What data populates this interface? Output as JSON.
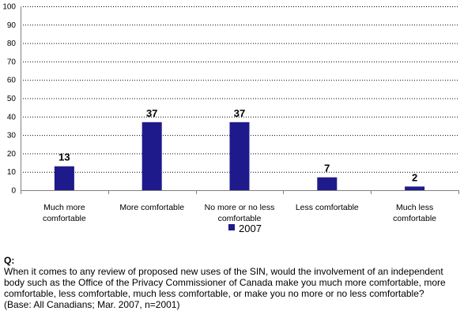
{
  "chart_data": {
    "type": "bar",
    "categories": [
      [
        "Much more",
        "comfortable"
      ],
      [
        "More comfortable"
      ],
      [
        "No more or no less",
        "comfortable"
      ],
      [
        "Less comfortable"
      ],
      [
        "Much less",
        "comfortable"
      ]
    ],
    "series": [
      {
        "name": "2007",
        "values": [
          13,
          37,
          37,
          7,
          2
        ],
        "color": "#1f1a8c"
      }
    ],
    "data_labels": [
      "13",
      "37",
      "37",
      "7",
      "2"
    ],
    "ylim": [
      0,
      100
    ],
    "yticks": [
      0,
      10,
      20,
      30,
      40,
      50,
      60,
      70,
      80,
      90,
      100
    ],
    "grid": true,
    "grid_style": "dotted",
    "legend_position": "bottom"
  },
  "question": {
    "label": "Q:",
    "text": "When it comes to any review of proposed new uses of the SIN, would the involvement of an independent body such as the Office of the Privacy Commissioner of Canada make you much more comfortable, more comfortable, less comfortable, much less comfortable, or make you no more or no less comfortable?",
    "base": "(Base: All Canadians; Mar. 2007, n=2001)"
  }
}
